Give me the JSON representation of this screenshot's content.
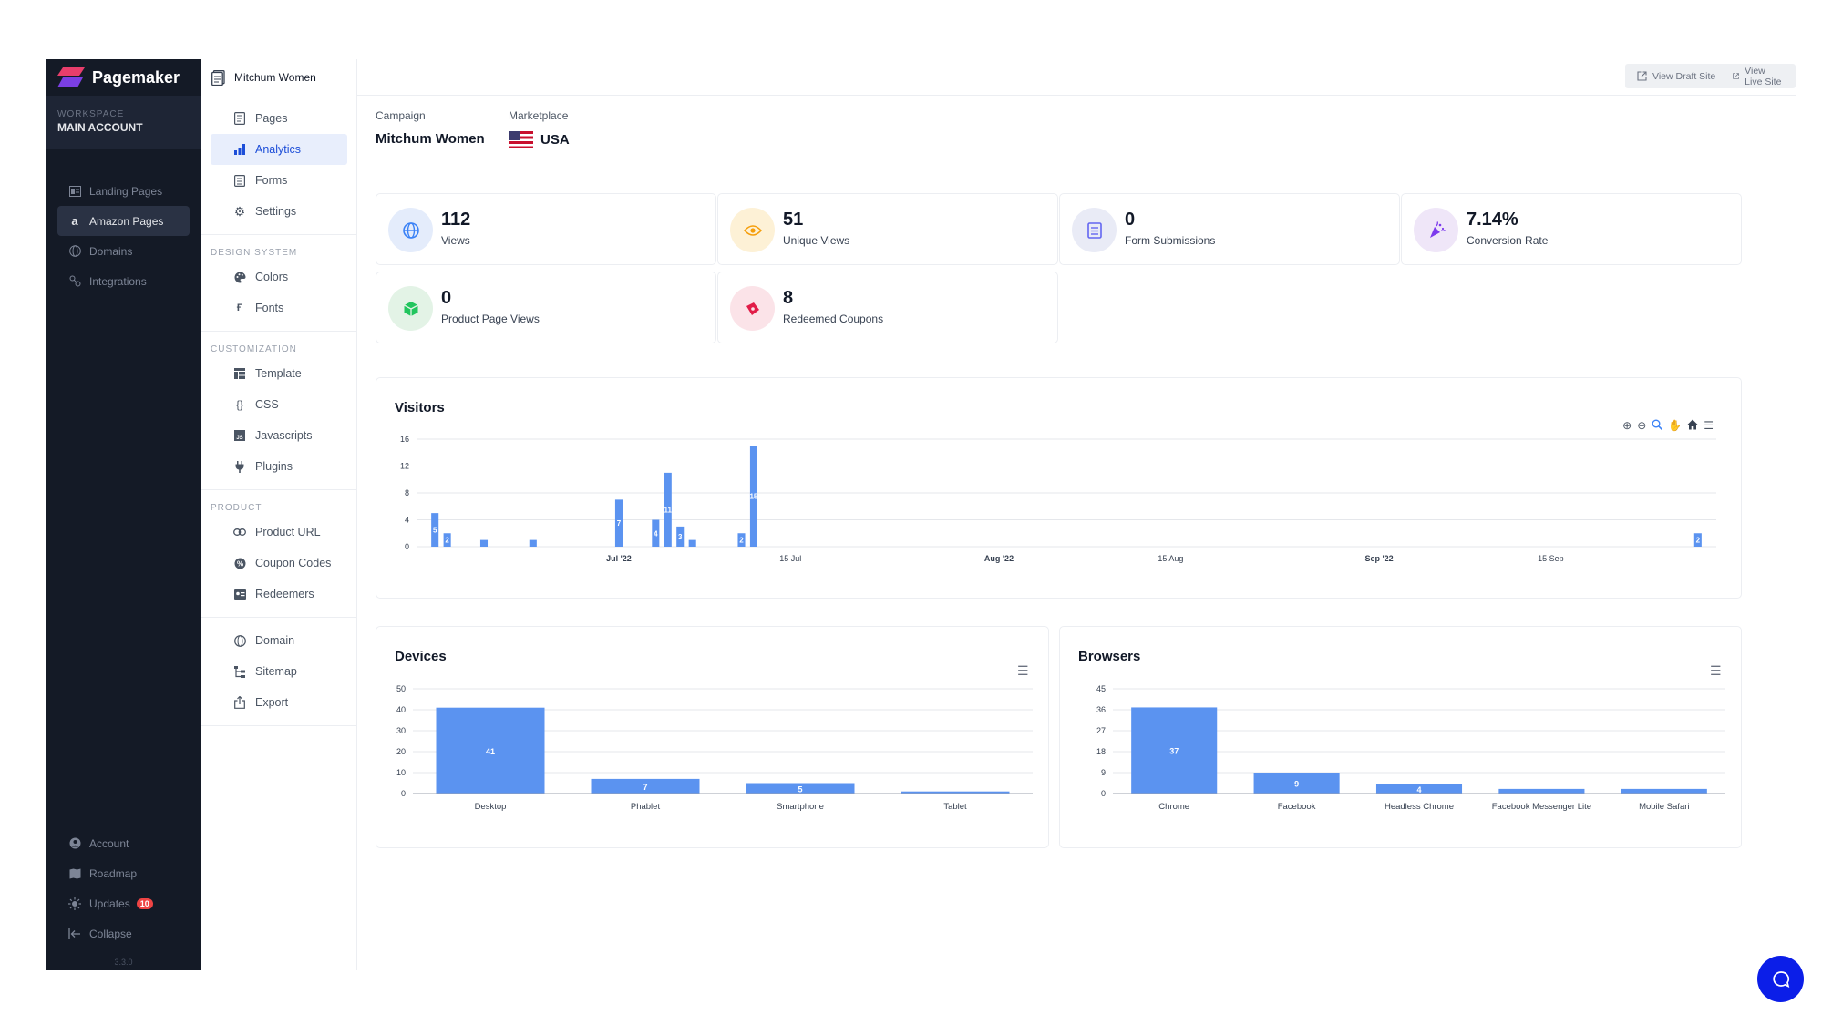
{
  "brand": {
    "name": "Pagemaker"
  },
  "workspace": {
    "label": "WORKSPACE",
    "name": "MAIN ACCOUNT"
  },
  "sidebar": {
    "items": [
      {
        "label": "Landing Pages",
        "icon": "landing-pages-icon"
      },
      {
        "label": "Amazon Pages",
        "icon": "amazon-icon"
      },
      {
        "label": "Domains",
        "icon": "globe-icon"
      },
      {
        "label": "Integrations",
        "icon": "integrations-icon"
      }
    ],
    "bottom": [
      {
        "label": "Account",
        "icon": "account-icon"
      },
      {
        "label": "Roadmap",
        "icon": "map-icon"
      },
      {
        "label": "Updates",
        "icon": "sun-icon",
        "badge": "10"
      },
      {
        "label": "Collapse",
        "icon": "collapse-icon"
      }
    ],
    "version": "3.3.0"
  },
  "breadcrumb": {
    "title": "Mitchum Women"
  },
  "secnav": {
    "main": [
      {
        "label": "Pages"
      },
      {
        "label": "Analytics"
      },
      {
        "label": "Forms"
      },
      {
        "label": "Settings"
      }
    ],
    "design_head": "DESIGN SYSTEM",
    "design": [
      {
        "label": "Colors"
      },
      {
        "label": "Fonts"
      }
    ],
    "custom_head": "CUSTOMIZATION",
    "custom": [
      {
        "label": "Template"
      },
      {
        "label": "CSS"
      },
      {
        "label": "Javascripts"
      },
      {
        "label": "Plugins"
      }
    ],
    "product_head": "PRODUCT",
    "product": [
      {
        "label": "Product URL"
      },
      {
        "label": "Coupon Codes"
      },
      {
        "label": "Redeemers"
      }
    ],
    "other": [
      {
        "label": "Domain"
      },
      {
        "label": "Sitemap"
      },
      {
        "label": "Export"
      }
    ]
  },
  "topbar": {
    "draft": "View Draft Site",
    "live": "View Live Site"
  },
  "campaign": {
    "label": "Campaign",
    "value": "Mitchum Women"
  },
  "marketplace": {
    "label": "Marketplace",
    "value": "USA"
  },
  "stats": [
    {
      "value": "112",
      "label": "Views",
      "color": "#3b82f6"
    },
    {
      "value": "51",
      "label": "Unique Views",
      "color": "#f59e0b"
    },
    {
      "value": "0",
      "label": "Form Submissions",
      "color": "#6366f1"
    },
    {
      "value": "7.14%",
      "label": "Conversion Rate",
      "color": "#7c3aed"
    },
    {
      "value": "0",
      "label": "Product Page Views",
      "color": "#22c55e"
    },
    {
      "value": "8",
      "label": "Redeemed Coupons",
      "color": "#e11d48"
    }
  ],
  "colors": {
    "bar": "#5b93f0",
    "accent": "#1d4ed8",
    "chat": "#0b1ee8"
  },
  "chart_data": [
    {
      "type": "bar",
      "title": "Visitors",
      "ylim": [
        0,
        16
      ],
      "yticks": [
        0,
        4,
        8,
        12,
        16
      ],
      "xticks": [
        {
          "label": "Jul '22",
          "date": "2022-07-01",
          "bold": true
        },
        {
          "label": "15 Jul",
          "date": "2022-07-15",
          "bold": false
        },
        {
          "label": "Aug '22",
          "date": "2022-08-01",
          "bold": true
        },
        {
          "label": "15 Aug",
          "date": "2022-08-15",
          "bold": false
        },
        {
          "label": "Sep '22",
          "date": "2022-09-01",
          "bold": true
        },
        {
          "label": "15 Sep",
          "date": "2022-09-15",
          "bold": false
        }
      ],
      "points": [
        {
          "date": "2022-06-16",
          "value": 5,
          "label": "5"
        },
        {
          "date": "2022-06-17",
          "value": 2,
          "label": "2"
        },
        {
          "date": "2022-06-20",
          "value": 1,
          "label": ""
        },
        {
          "date": "2022-06-24",
          "value": 1,
          "label": ""
        },
        {
          "date": "2022-07-01",
          "value": 7,
          "label": "7"
        },
        {
          "date": "2022-07-04",
          "value": 4,
          "label": "4"
        },
        {
          "date": "2022-07-05",
          "value": 11,
          "label": "11"
        },
        {
          "date": "2022-07-06",
          "value": 3,
          "label": "3"
        },
        {
          "date": "2022-07-07",
          "value": 1,
          "label": ""
        },
        {
          "date": "2022-07-11",
          "value": 2,
          "label": "2"
        },
        {
          "date": "2022-07-12",
          "value": 15,
          "label": "15"
        },
        {
          "date": "2022-09-27",
          "value": 2,
          "label": "2"
        }
      ]
    },
    {
      "type": "bar",
      "title": "Devices",
      "ylim": [
        0,
        50
      ],
      "yticks": [
        0,
        10,
        20,
        30,
        40,
        50
      ],
      "categories": [
        "Desktop",
        "Phablet",
        "Smartphone",
        "Tablet"
      ],
      "values": [
        41,
        7,
        5,
        1
      ],
      "labels": [
        "41",
        "7",
        "5",
        ""
      ]
    },
    {
      "type": "bar",
      "title": "Browsers",
      "ylim": [
        0,
        45
      ],
      "yticks": [
        0,
        9,
        18,
        27,
        36,
        45
      ],
      "categories": [
        "Chrome",
        "Facebook",
        "Headless Chrome",
        "Facebook Messenger Lite",
        "Mobile Safari"
      ],
      "values": [
        37,
        9,
        4,
        2,
        2
      ],
      "labels": [
        "37",
        "9",
        "4",
        "",
        ""
      ]
    }
  ]
}
